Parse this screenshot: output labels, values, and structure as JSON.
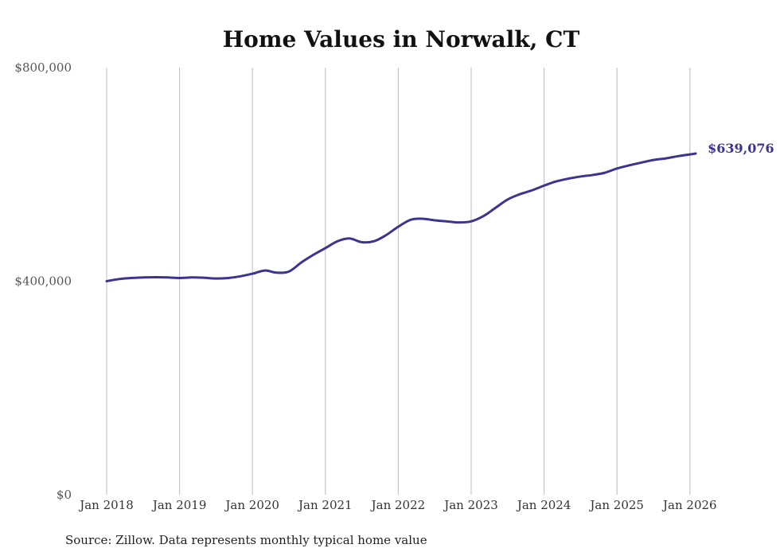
{
  "chart_data": {
    "type": "line",
    "title": "Home Values in Norwalk, CT",
    "source": "Source: Zillow. Data represents monthly typical home value",
    "xlabel": "",
    "ylabel": "",
    "ylim": [
      0,
      800000
    ],
    "y_ticks": [
      {
        "value": 0,
        "label": "$0"
      },
      {
        "value": 400000,
        "label": "$400,000"
      },
      {
        "value": 800000,
        "label": "$800,000"
      }
    ],
    "x_ticks": [
      {
        "value": 2018,
        "label": "Jan 2018"
      },
      {
        "value": 2019,
        "label": "Jan 2019"
      },
      {
        "value": 2020,
        "label": "Jan 2020"
      },
      {
        "value": 2021,
        "label": "Jan 2021"
      },
      {
        "value": 2022,
        "label": "Jan 2022"
      },
      {
        "value": 2023,
        "label": "Jan 2023"
      },
      {
        "value": 2024,
        "label": "Jan 2024"
      },
      {
        "value": 2025,
        "label": "Jan 2025"
      },
      {
        "value": 2026,
        "label": "Jan 2026"
      }
    ],
    "xlim": [
      2018,
      2026.1
    ],
    "grid": "vertical",
    "series": [
      {
        "name": "Typical home value",
        "color": "#3c3491",
        "end_label": "$639,076",
        "x": [
          2018.0,
          2018.17,
          2018.33,
          2018.5,
          2018.67,
          2018.83,
          2019.0,
          2019.17,
          2019.33,
          2019.5,
          2019.67,
          2019.83,
          2020.0,
          2020.17,
          2020.33,
          2020.5,
          2020.67,
          2020.83,
          2021.0,
          2021.17,
          2021.33,
          2021.5,
          2021.67,
          2021.83,
          2022.0,
          2022.17,
          2022.33,
          2022.5,
          2022.67,
          2022.83,
          2023.0,
          2023.17,
          2023.33,
          2023.5,
          2023.67,
          2023.83,
          2024.0,
          2024.17,
          2024.33,
          2024.5,
          2024.67,
          2024.83,
          2025.0,
          2025.17,
          2025.33,
          2025.5,
          2025.67,
          2025.83,
          2026.08
        ],
        "values": [
          400000,
          404000,
          406000,
          407000,
          407500,
          407000,
          406000,
          407000,
          406500,
          405000,
          406000,
          409000,
          414000,
          420000,
          416000,
          418000,
          435000,
          449000,
          462000,
          475000,
          480000,
          473000,
          475000,
          486000,
          502000,
          515000,
          517000,
          514000,
          512000,
          510000,
          512000,
          522000,
          537000,
          553000,
          563000,
          570000,
          579000,
          587000,
          592000,
          596000,
          599000,
          603000,
          611000,
          617000,
          622000,
          627000,
          630000,
          634000,
          639076
        ]
      }
    ]
  }
}
